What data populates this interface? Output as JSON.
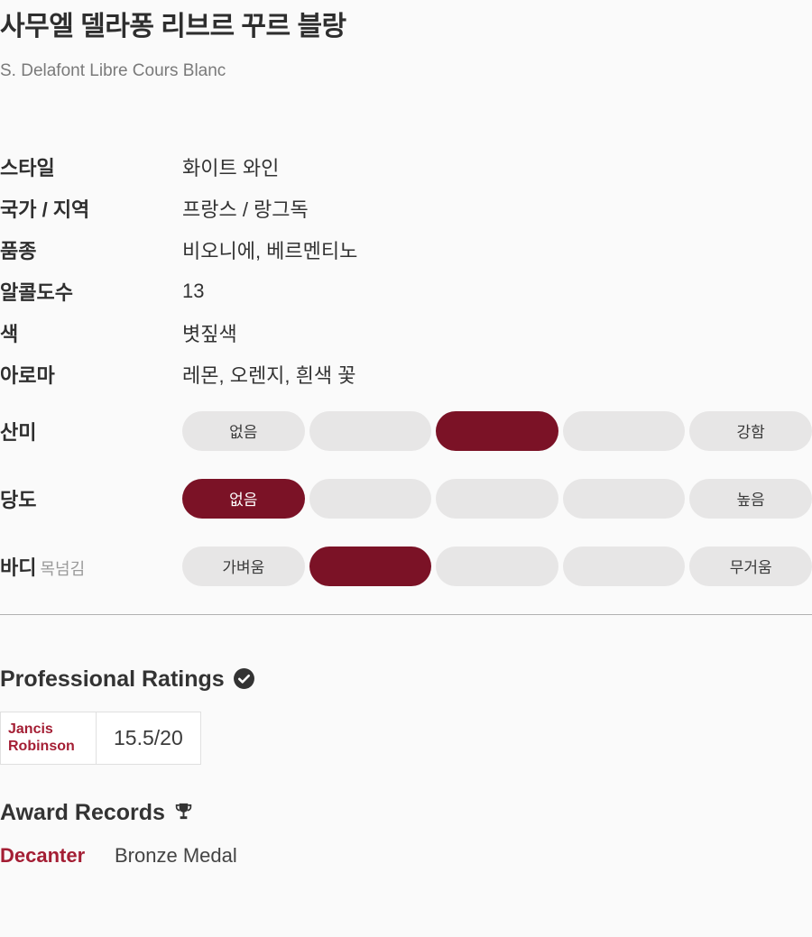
{
  "page": {
    "title_ko": "사무엘 델라퐁 리브르 꾸르 블랑",
    "title_en": "S. Delafont Libre Cours Blanc"
  },
  "specs": [
    {
      "label": "스타일",
      "value": "화이트 와인"
    },
    {
      "label": "국가 / 지역",
      "value": "프랑스 / 랑그독"
    },
    {
      "label": "품종",
      "value": "비오니에, 베르멘티노"
    },
    {
      "label": "알콜도수",
      "value": "13"
    },
    {
      "label": "색",
      "value": "볏짚색"
    },
    {
      "label": "아로마",
      "value": "레몬, 오렌지, 흰색 꽃"
    }
  ],
  "scales": [
    {
      "label": "산미",
      "sublabel": "",
      "min_label": "없음",
      "max_label": "강함",
      "levels": 5,
      "selected_index": 2
    },
    {
      "label": "당도",
      "sublabel": "",
      "min_label": "없음",
      "max_label": "높음",
      "levels": 5,
      "selected_index": 0
    },
    {
      "label": "바디",
      "sublabel": "목넘김",
      "min_label": "가벼움",
      "max_label": "무거움",
      "levels": 5,
      "selected_index": 1
    }
  ],
  "ratings": {
    "heading": "Professional Ratings",
    "badge_icon": "check-circle-icon",
    "items": [
      {
        "source": "Jancis Robinson",
        "score": "15.5/20"
      }
    ]
  },
  "awards": {
    "heading": "Award Records",
    "badge_icon": "trophy-icon",
    "items": [
      {
        "source": "Decanter",
        "award": "Bronze Medal"
      }
    ]
  },
  "colors": {
    "scale_selected": "#7b1226",
    "scale_unselected": "#e7e6e6",
    "link_red": "#a41e34",
    "heading_text": "#333333",
    "divider": "#b0b0b0"
  }
}
